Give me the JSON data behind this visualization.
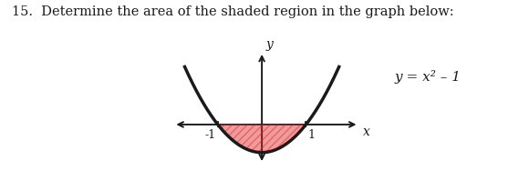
{
  "question_text": "15.  Determine the area of the shaded region in the graph below:",
  "equation_label": "y = x² – 1",
  "x_label": "x",
  "y_label": "y",
  "x_tick_neg": "-1",
  "x_tick_pos": "1",
  "parabola_color": "#1a1a1a",
  "shade_color": "#dd2222",
  "background_color": "#ffffff",
  "axis_color": "#1a1a1a",
  "line_width": 2.5,
  "shade_alpha": 0.45,
  "hatch": "////"
}
